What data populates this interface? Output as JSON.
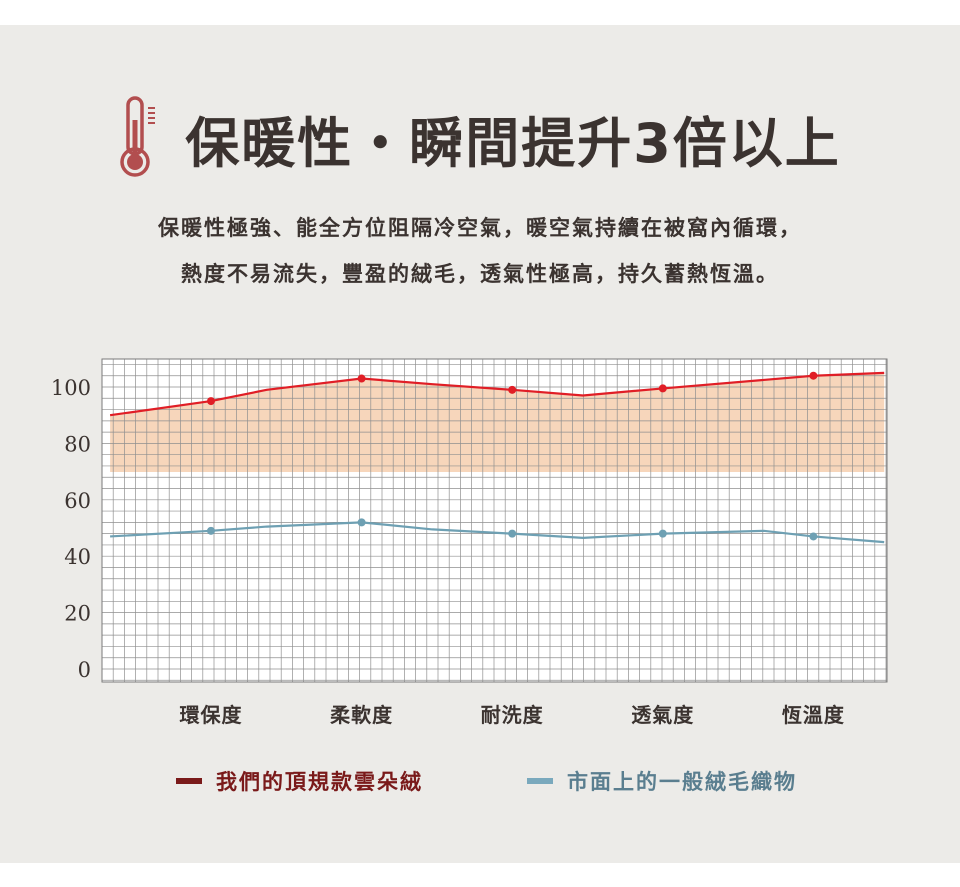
{
  "colors": {
    "panel": "#ecebe8",
    "title": "#3b3330",
    "accent_red": "#e01e26",
    "accent_blue": "#6ea0b3",
    "fill": "#f4c8a4",
    "grid": "#8f8f8f",
    "thermometer": "#b24e4f"
  },
  "header": {
    "icon": "thermometer-icon",
    "title": "保暖性・瞬間提升3倍以上",
    "subtitle_line1": "保暖性極強、能全方位阻隔冷空氣，暖空氣持續在被窩內循環，",
    "subtitle_line2": "熱度不易流失，豐盈的絨毛，透氣性極高，持久蓄熱恆溫。"
  },
  "chart_data": {
    "type": "line",
    "ylim": [
      0,
      100
    ],
    "yticks": [
      0,
      20,
      40,
      60,
      80,
      100
    ],
    "categories": [
      "環保度",
      "柔軟度",
      "耐洗度",
      "透氣度",
      "恆溫度"
    ],
    "x": [
      -0.67,
      0,
      0.37,
      1,
      1.47,
      2,
      2.47,
      3,
      3.67,
      4,
      4.47
    ],
    "grid": true,
    "legend_position": "bottom",
    "series": [
      {
        "name": "我們的頂規款雲朵絨",
        "color": "#e01e26",
        "fill": "#f4c8a4",
        "values": [
          90,
          95,
          99,
          103,
          101,
          99,
          97,
          99.5,
          102.5,
          104,
          105
        ]
      },
      {
        "name": "市面上的一般絨毛織物",
        "color": "#6ea0b3",
        "values": [
          47,
          49,
          50.5,
          52,
          49.5,
          48,
          46.5,
          48,
          49,
          47,
          45
        ]
      }
    ],
    "markers": [
      1,
      3,
      5,
      7,
      9
    ]
  }
}
